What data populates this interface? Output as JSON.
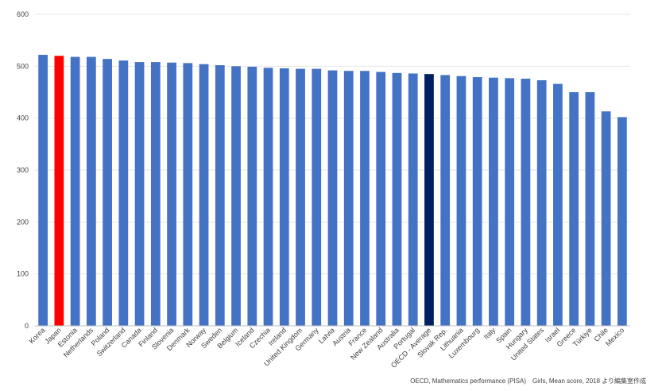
{
  "chart_data": {
    "type": "bar",
    "title": "",
    "xlabel": "",
    "ylabel": "",
    "ylim": [
      0,
      600
    ],
    "yticks": [
      0,
      100,
      200,
      300,
      400,
      500,
      600
    ],
    "grid": true,
    "legend": "none",
    "categories": [
      "Korea",
      "Japan",
      "Estonia",
      "Netherlands",
      "Poland",
      "Switzerland",
      "Canada",
      "Finland",
      "Slovenia",
      "Denmark",
      "Norway",
      "Sweden",
      "Belgium",
      "Iceland",
      "Czechia",
      "Ireland",
      "United Kingdom",
      "Germany",
      "Latvia",
      "Austria",
      "France",
      "New Zealand",
      "Australia",
      "Portugal",
      "OECD - Average",
      "Slovak Rep.",
      "Lithuania",
      "Luxembourg",
      "Italy",
      "Spain",
      "Hungary",
      "United States",
      "Israel",
      "Greece",
      "Türkiye",
      "Chile",
      "Mexico"
    ],
    "values": [
      522,
      520,
      518,
      518,
      514,
      511,
      508,
      508,
      507,
      506,
      504,
      502,
      500,
      499,
      497,
      496,
      495,
      495,
      492,
      491,
      491,
      489,
      487,
      486,
      485,
      483,
      481,
      479,
      478,
      477,
      476,
      473,
      466,
      450,
      450,
      413,
      402
    ],
    "highlights": {
      "Japan": "#ff0000",
      "OECD - Average": "#002060"
    },
    "bar_color": "#4472c4"
  },
  "source_note": "OECD, Mathematics performance (PISA)　Girls, Mean score, 2018 より編集室作成"
}
